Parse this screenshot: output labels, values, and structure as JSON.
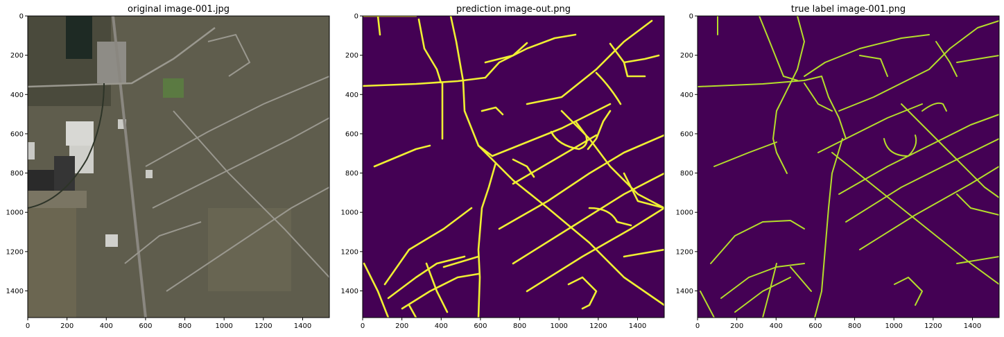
{
  "panels": [
    {
      "title": "original image-001.jpg"
    },
    {
      "title": "prediction image-out.png"
    },
    {
      "title": "true label image-001.png"
    }
  ],
  "axes": {
    "x_ticks": [
      "0",
      "200",
      "400",
      "600",
      "800",
      "1000",
      "1200",
      "1400"
    ],
    "y_ticks": [
      "0",
      "200",
      "400",
      "600",
      "800",
      "1000",
      "1200",
      "1400"
    ],
    "x_range": [
      0,
      1536
    ],
    "y_range": [
      0,
      1536
    ]
  },
  "colors": {
    "mask_background": "#440154",
    "pred_road": "#f0f032",
    "label_road": "#b5de2b",
    "aerial_base": "#5f5d4d"
  }
}
